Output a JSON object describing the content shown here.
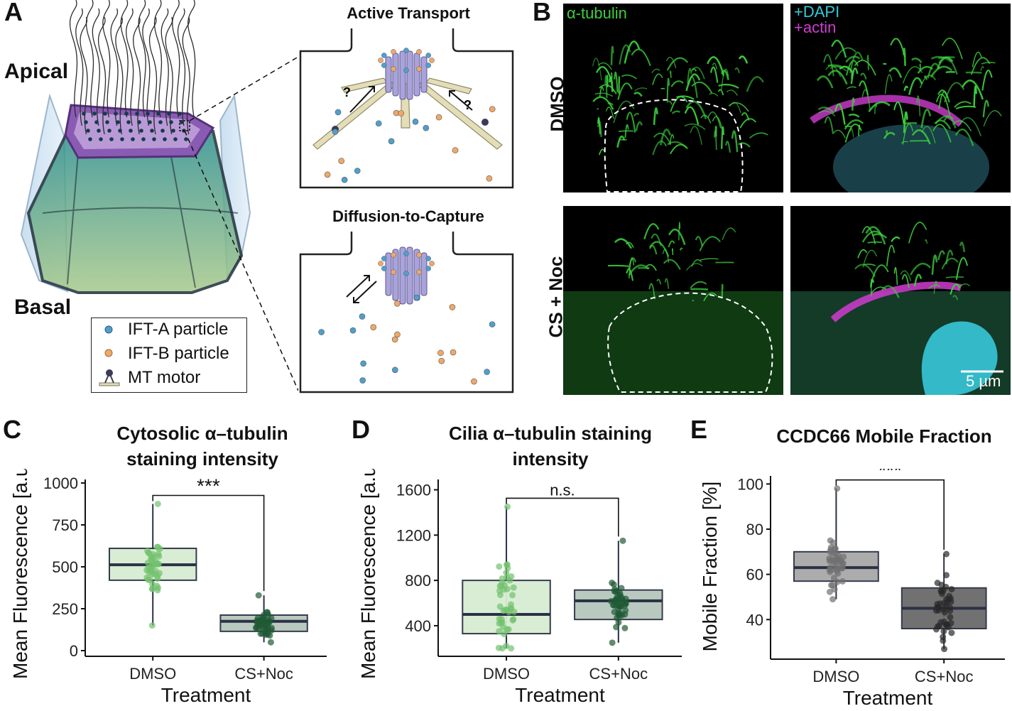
{
  "figure": {
    "panel_labels": [
      "A",
      "B",
      "C",
      "D",
      "E"
    ],
    "panelA": {
      "apical": "Apical",
      "basal": "Basal",
      "active_transport_title": "Active Transport",
      "diffusion_title": "Diffusion-to-Capture",
      "question_mark": "?",
      "legend": [
        {
          "label": "IFT-A particle",
          "color": "#4f9fce"
        },
        {
          "label": "IFT-B particle",
          "color": "#f0a868"
        },
        {
          "label": "MT motor",
          "color": "#3b3b55"
        }
      ]
    },
    "panelB": {
      "channel_alpha": "α-tubulin",
      "channel_dapi": "+DAPI",
      "channel_actin": "+actin",
      "row_labels": [
        "DMSO",
        "CS + Noc"
      ],
      "scalebar": "5 µm",
      "colors": {
        "tubulin": "#3ccf3c",
        "dapi": "#36c8d8",
        "actin": "#d03cd0"
      }
    }
  },
  "chart_data": [
    {
      "type": "box",
      "panel": "C",
      "title_lines": [
        "Cytosolic α–tubulin",
        "staining intensity"
      ],
      "xlabel": "Treatment",
      "ylabel": "Mean Fluorescence [a.u.]",
      "categories": [
        "DMSO",
        "CS+Noc"
      ],
      "ylim": [
        0,
        1000
      ],
      "yticks": [
        0,
        250,
        500,
        750,
        1000
      ],
      "boxes": [
        {
          "q1": 420,
          "median": 512,
          "q3": 610,
          "min": 150,
          "max": 875,
          "fill": "#d8edd2",
          "points_color": "#72c26e"
        },
        {
          "q1": 115,
          "median": 175,
          "q3": 212,
          "min": 50,
          "max": 330,
          "fill": "#b6c7bc",
          "points_color": "#1f5a34"
        }
      ],
      "significance": "***"
    },
    {
      "type": "box",
      "panel": "D",
      "title_lines": [
        "Cilia α–tubulin staining",
        "intensity"
      ],
      "xlabel": "Treatment",
      "ylabel": "Mean Fluorescence [a.u.]",
      "categories": [
        "DMSO",
        "CS+Noc"
      ],
      "ylim": [
        180,
        1660
      ],
      "yticks": [
        400,
        800,
        1200,
        1600
      ],
      "boxes": [
        {
          "q1": 330,
          "median": 500,
          "q3": 800,
          "min": 200,
          "max": 1450,
          "fill": "#d8edd2",
          "points_color": "#72c26e"
        },
        {
          "q1": 455,
          "median": 620,
          "q3": 715,
          "min": 250,
          "max": 1150,
          "fill": "#b6c7bc",
          "points_color": "#1f5a34"
        }
      ],
      "significance": "n.s."
    },
    {
      "type": "box",
      "panel": "E",
      "title_lines": [
        "CCDC66 Mobile Fraction"
      ],
      "xlabel": "Treatment",
      "ylabel": "Mobile Fraction [%]",
      "categories": [
        "DMSO",
        "CS+Noc"
      ],
      "ylim": [
        25,
        102
      ],
      "yticks": [
        40,
        60,
        80,
        100
      ],
      "boxes": [
        {
          "q1": 57,
          "median": 63,
          "q3": 70,
          "min": 49,
          "max": 98,
          "fill": "#a8a8a8",
          "points_color": "#707070"
        },
        {
          "q1": 36,
          "median": 45,
          "q3": 54,
          "min": 27,
          "max": 69,
          "fill": "#6a6a6a",
          "points_color": "#2a2a2a"
        }
      ],
      "significance": "***"
    }
  ]
}
